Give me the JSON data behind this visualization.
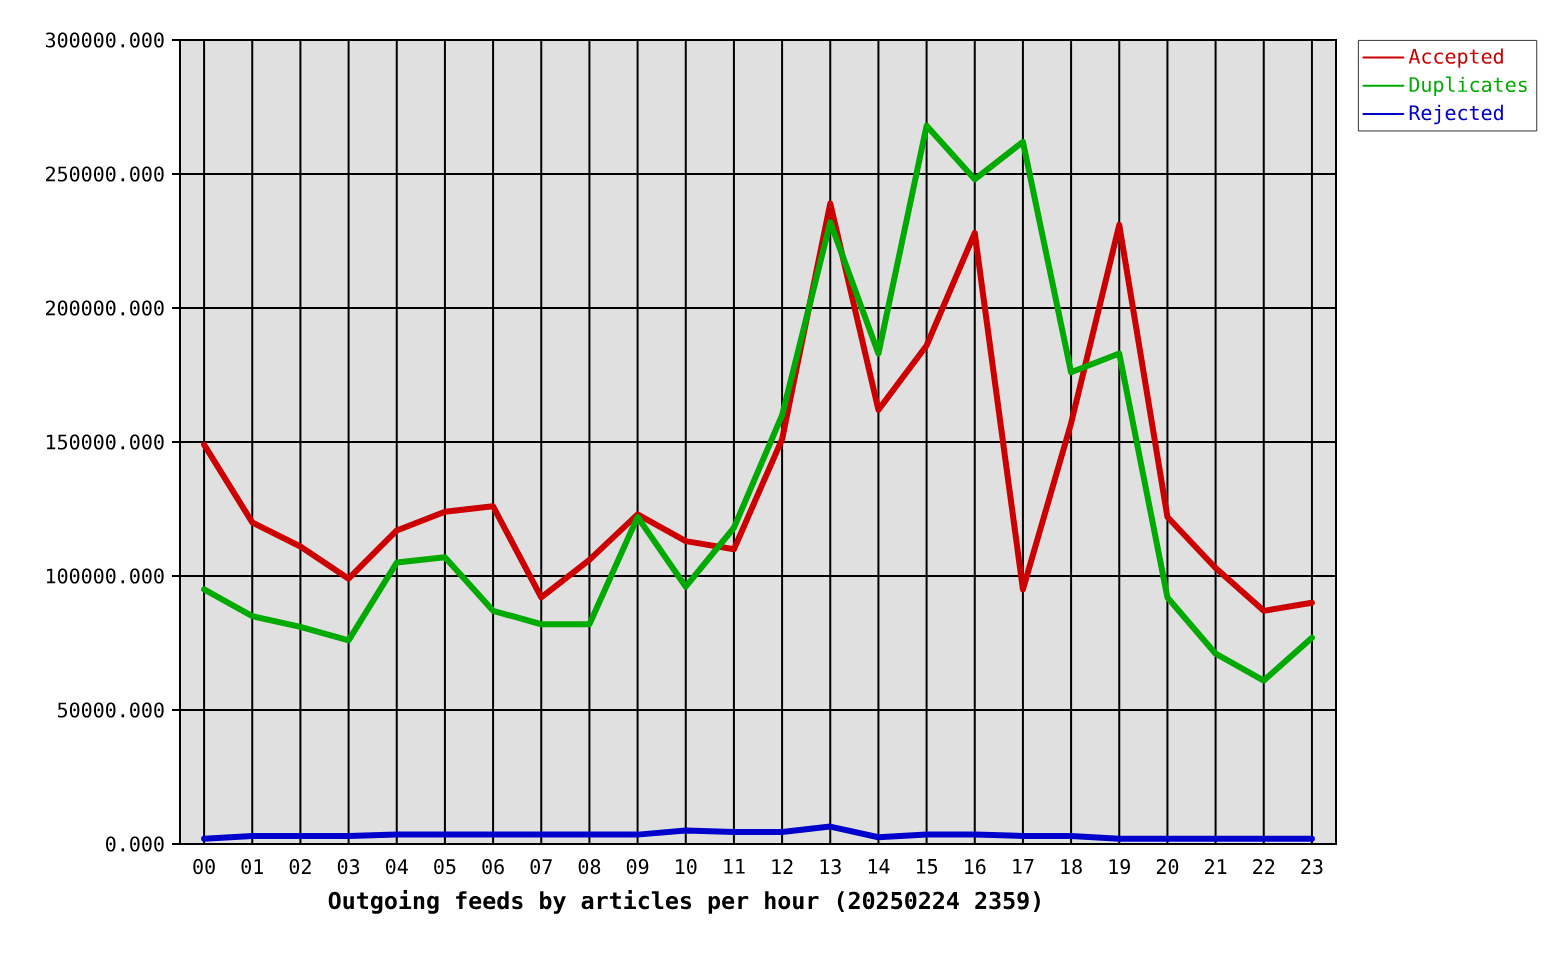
{
  "chart_data": {
    "type": "line",
    "xlabel": "Outgoing feeds by articles per hour (20250224 2359)",
    "categories": [
      "00",
      "01",
      "02",
      "03",
      "04",
      "05",
      "06",
      "07",
      "08",
      "09",
      "10",
      "11",
      "12",
      "13",
      "14",
      "15",
      "16",
      "17",
      "18",
      "19",
      "20",
      "21",
      "22",
      "23"
    ],
    "series": [
      {
        "name": "Accepted",
        "color": "#cc0000",
        "values": [
          149000,
          120000,
          111000,
          99000,
          117000,
          124000,
          126000,
          92000,
          106000,
          123000,
          113000,
          110000,
          151000,
          239000,
          162000,
          186000,
          228000,
          95000,
          157000,
          231000,
          122000,
          103000,
          87000,
          90000
        ]
      },
      {
        "name": "Duplicates",
        "color": "#00aa00",
        "values": [
          95000,
          85000,
          81000,
          76000,
          105000,
          107000,
          87000,
          82000,
          82000,
          122000,
          96000,
          118000,
          160000,
          232000,
          183000,
          268000,
          248000,
          262000,
          176000,
          183000,
          92000,
          71000,
          61000,
          77000
        ]
      },
      {
        "name": "Rejected",
        "color": "#0000cc",
        "values": [
          2000,
          3000,
          3000,
          3000,
          3500,
          3500,
          3500,
          3500,
          3500,
          3500,
          5000,
          4500,
          4500,
          6500,
          2500,
          3500,
          3500,
          3000,
          3000,
          2000,
          2000,
          2000,
          2000,
          2000
        ]
      }
    ],
    "ylim": [
      0,
      300000
    ],
    "yticks": [
      {
        "value": 0,
        "label": "0.000"
      },
      {
        "value": 50000,
        "label": "50000.000"
      },
      {
        "value": 100000,
        "label": "100000.000"
      },
      {
        "value": 150000,
        "label": "150000.000"
      },
      {
        "value": 200000,
        "label": "200000.000"
      },
      {
        "value": 250000,
        "label": "250000.000"
      },
      {
        "value": 300000,
        "label": "300000.000"
      }
    ],
    "grid": true,
    "legend": "top right",
    "line_style": "solid"
  }
}
